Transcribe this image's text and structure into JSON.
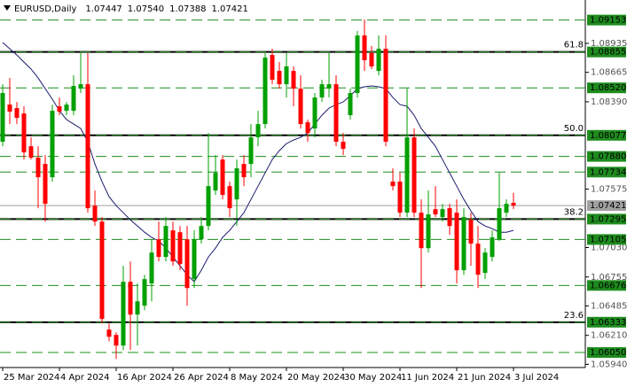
{
  "chart_data": {
    "type": "candlestick",
    "symbol": "EURUSD,Daily",
    "header_quote": [
      "1.07447",
      "1.07540",
      "1.07388",
      "1.07421"
    ],
    "categories": [
      "25 Mar 2024",
      null,
      null,
      null,
      null,
      null,
      null,
      null,
      "4 Apr 2024",
      null,
      null,
      null,
      null,
      null,
      null,
      null,
      "16 Apr 2024",
      null,
      null,
      null,
      null,
      null,
      null,
      null,
      "26 Apr 2024",
      null,
      null,
      null,
      null,
      null,
      null,
      null,
      "8 May 2024",
      null,
      null,
      null,
      null,
      null,
      null,
      null,
      "20 May 2024",
      null,
      null,
      null,
      null,
      null,
      null,
      null,
      "30 May 2024",
      null,
      null,
      null,
      null,
      null,
      null,
      null,
      "11 Jun 2024",
      null,
      null,
      null,
      null,
      null,
      null,
      null,
      "21 Jun 2024",
      null,
      null,
      null,
      null,
      null,
      null,
      null,
      "3 Jul 2024"
    ],
    "open": [
      1.08017,
      1.08364,
      1.08331,
      1.08281,
      1.07975,
      1.07868,
      1.0781,
      1.07686,
      1.08348,
      1.08306,
      1.08306,
      1.08513,
      1.08554,
      1.07421,
      1.07272,
      1.06264,
      1.06214,
      1.06115,
      1.0671,
      1.06404,
      1.06487,
      1.06694,
      1.07107,
      1.06942,
      1.0719,
      1.07173,
      1.07107,
      1.06735,
      1.07107,
      1.07231,
      1.07562,
      1.07851,
      1.07603,
      1.07479,
      1.0781,
      1.0781,
      1.08058,
      1.08182,
      1.08827,
      1.08678,
      1.08554,
      1.08678,
      1.08513,
      1.08199,
      1.08141,
      1.0843,
      1.08513,
      1.08554,
      1.08017,
      1.08265,
      1.08472,
      1.09009,
      1.08844,
      1.08678,
      1.08885,
      1.07645,
      1.07645,
      1.07355,
      1.08058,
      1.07355,
      1.07024,
      1.07388,
      1.07314,
      1.07397,
      1.07355,
      1.06818,
      1.07289,
      1.07066,
      1.06793,
      1.06942,
      1.07107,
      1.07355,
      1.07447
    ],
    "high": [
      1.08554,
      1.08612,
      1.08389,
      1.08348,
      1.08058,
      1.07975,
      1.07893,
      1.08364,
      1.0843,
      1.08389,
      1.08637,
      1.08844,
      1.08844,
      1.07562,
      1.07314,
      1.06321,
      1.06239,
      1.06859,
      1.069,
      1.06694,
      1.06776,
      1.07107,
      1.07272,
      1.07314,
      1.07272,
      1.07231,
      1.07231,
      1.0719,
      1.07314,
      1.08099,
      1.07893,
      1.07893,
      1.07645,
      1.07851,
      1.07893,
      1.08182,
      1.08306,
      1.08844,
      1.08885,
      1.08761,
      1.08844,
      1.0872,
      1.08637,
      1.08224,
      1.08472,
      1.08596,
      1.08844,
      1.08637,
      1.08099,
      1.08513,
      1.09051,
      1.09158,
      1.0891,
      1.09009,
      1.09009,
      1.07769,
      1.07727,
      1.08513,
      1.08141,
      1.07479,
      1.07562,
      1.07603,
      1.07438,
      1.07438,
      1.07479,
      1.07397,
      1.07355,
      1.07231,
      1.07024,
      1.0719,
      1.07727,
      1.07479,
      1.0754
    ],
    "low": [
      1.07975,
      1.08182,
      1.08182,
      1.07851,
      1.07851,
      1.07397,
      1.07272,
      1.07645,
      1.08265,
      1.08265,
      1.08265,
      1.08472,
      1.07355,
      1.07231,
      1.06321,
      1.06156,
      1.05991,
      1.06073,
      1.06073,
      1.06115,
      1.06445,
      1.06528,
      1.069,
      1.069,
      1.06859,
      1.06818,
      1.06487,
      1.06652,
      1.07066,
      1.0719,
      1.07521,
      1.07479,
      1.07314,
      1.07231,
      1.07603,
      1.07686,
      1.07975,
      1.08141,
      1.08554,
      1.08513,
      1.0843,
      1.08348,
      1.08141,
      1.08017,
      1.08058,
      1.08389,
      1.0843,
      1.07975,
      1.07893,
      1.08224,
      1.0843,
      1.08678,
      1.08695,
      1.08637,
      1.07975,
      1.07562,
      1.07314,
      1.07314,
      1.07314,
      1.06652,
      1.06983,
      1.07314,
      1.07272,
      1.07148,
      1.06694,
      1.06776,
      1.06859,
      1.06652,
      1.06735,
      1.069,
      1.07091,
      1.07314,
      1.07388
    ],
    "close": [
      1.08472,
      1.08298,
      1.0824,
      1.07918,
      1.07868,
      1.07686,
      1.07438,
      1.08306,
      1.08298,
      1.08364,
      1.08538,
      1.08554,
      1.07397,
      1.07272,
      1.06363,
      1.06197,
      1.06115,
      1.0671,
      1.06404,
      1.06528,
      1.06735,
      1.06983,
      1.06942,
      1.07231,
      1.069,
      1.06876,
      1.06652,
      1.07107,
      1.07231,
      1.07603,
      1.07727,
      1.07521,
      1.07397,
      1.07769,
      1.07686,
      1.08058,
      1.08182,
      1.08802,
      1.08596,
      1.08554,
      1.0872,
      1.08513,
      1.08182,
      1.08099,
      1.0843,
      1.08554,
      1.08554,
      1.08017,
      1.07951,
      1.08472,
      1.09009,
      1.08778,
      1.0872,
      1.08885,
      1.08017,
      1.07603,
      1.07355,
      1.08058,
      1.07355,
      1.07024,
      1.07339,
      1.07339,
      1.07388,
      1.07231,
      1.06818,
      1.07314,
      1.07066,
      1.06776,
      1.06983,
      1.07124,
      1.07397,
      1.07438,
      1.07421
    ],
    "up_color": "#00a000",
    "down_color": "#ff0000",
    "ma": {
      "color": "#1a1a6e",
      "values": [
        1.08943,
        1.08885,
        1.08827,
        1.08761,
        1.08695,
        1.08612,
        1.08513,
        1.08414,
        1.08306,
        1.08224,
        1.08182,
        1.08141,
        1.08017,
        1.0781,
        1.07645,
        1.07504,
        1.07421,
        1.07355,
        1.07289,
        1.07231,
        1.07173,
        1.07124,
        1.07091,
        1.07024,
        1.06942,
        1.06859,
        1.06776,
        1.0671,
        1.06818,
        1.06942,
        1.07024,
        1.07124,
        1.0719,
        1.07272,
        1.07355,
        1.07479,
        1.07603,
        1.07727,
        1.07851,
        1.07934,
        1.08,
        1.08033,
        1.08058,
        1.08099,
        1.08182,
        1.08265,
        1.08331,
        1.08364,
        1.08389,
        1.08447,
        1.08513,
        1.0853,
        1.08538,
        1.0853,
        1.08513,
        1.0843,
        1.08364,
        1.08348,
        1.08265,
        1.08141,
        1.08058,
        1.07975,
        1.07851,
        1.07727,
        1.07603,
        1.07479,
        1.07372,
        1.07272,
        1.07231,
        1.07206,
        1.07173,
        1.07173,
        1.0719
      ]
    },
    "ylim": [
      1.0591,
      1.0934
    ],
    "yticks": [
      1.08935,
      1.08665,
      {
        "value": 1.0839,
        "label": "1.08390"
      },
      1.07575,
      {
        "value": 1.0703,
        "label": "1.07030"
      },
      1.06755,
      1.06485,
      {
        "value": 1.0621,
        "label": "1.06210"
      },
      {
        "value": 1.0594,
        "label": "1.05940"
      }
    ],
    "levels": [
      1.09153,
      1.08855,
      {
        "value": 1.0852,
        "label": "1.08520"
      },
      1.08077,
      {
        "value": 1.0788,
        "label": "1.07880"
      },
      1.07734,
      1.07295,
      1.07105,
      1.06676,
      1.06333,
      {
        "value": 1.0605,
        "label": "1.06050"
      }
    ],
    "level_color": "#1e8c1e",
    "fib_levels": [
      {
        "value": 1.08855,
        "label": "61.8"
      },
      {
        "value": 1.08077,
        "label": "50.0"
      },
      {
        "value": 1.07295,
        "label": "38.2"
      },
      {
        "value": 1.06333,
        "label": "23.6"
      }
    ],
    "last_price": 1.07421
  }
}
